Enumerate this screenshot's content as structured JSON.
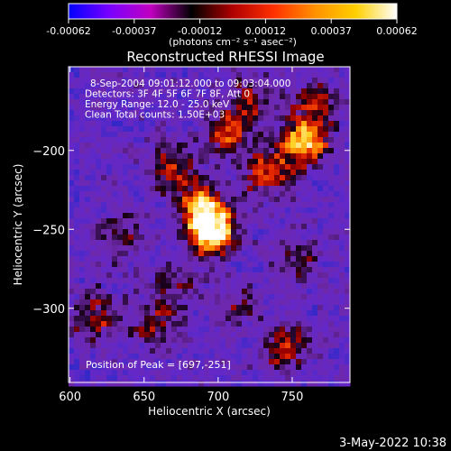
{
  "colorbar": {
    "ticks": [
      "-0.00062",
      "-0.00037",
      "-0.00012",
      "0.00012",
      "0.00037",
      "0.00062"
    ],
    "unit_label": "(photons cm⁻² s⁻¹ asec⁻²)",
    "colors": [
      "#0000ff",
      "#7a00ff",
      "#c000c0",
      "#000000",
      "#b00000",
      "#ff3000",
      "#ff9000",
      "#ffd000",
      "#ffffff"
    ]
  },
  "chart_data": {
    "type": "heatmap",
    "title": "Reconstructed RHESSI Image",
    "xlabel": "Heliocentric X (arcsec)",
    "ylabel": "Heliocentric Y (arcsec)",
    "xlim": [
      599,
      789
    ],
    "ylim": [
      -347,
      -147
    ],
    "xticks": [
      600,
      650,
      700,
      750
    ],
    "yticks": [
      -200,
      -250,
      -300
    ],
    "annotations": [
      "8-Sep-2004 09:01:12.000 to 09:03:04.000",
      "Detectors: 3F 4F 5F 6F 7F 8F, Att 0",
      "Energy Range: 12.0 - 25.0 keV",
      "Clean      Total counts: 1.50E+03"
    ],
    "peak_label": "Position of Peak = [697,-251]",
    "peak": [
      697,
      -251
    ],
    "sources": [
      {
        "x": 697,
        "y": -251,
        "value": 1.0
      },
      {
        "x": 688,
        "y": -237,
        "value": 0.8
      },
      {
        "x": 758,
        "y": -195,
        "value": 0.9
      },
      {
        "x": 733,
        "y": -214,
        "value": 0.6
      },
      {
        "x": 668,
        "y": -212,
        "value": 0.55
      },
      {
        "x": 705,
        "y": -190,
        "value": 0.5
      },
      {
        "x": 723,
        "y": -168,
        "value": 0.45
      },
      {
        "x": 767,
        "y": -172,
        "value": 0.45
      },
      {
        "x": 745,
        "y": -325,
        "value": 0.55
      },
      {
        "x": 617,
        "y": -305,
        "value": 0.5
      },
      {
        "x": 657,
        "y": -310,
        "value": 0.45
      },
      {
        "x": 632,
        "y": -257,
        "value": 0.4
      },
      {
        "x": 673,
        "y": -283,
        "value": 0.35
      },
      {
        "x": 752,
        "y": -268,
        "value": 0.35
      },
      {
        "x": 713,
        "y": -300,
        "value": 0.3
      }
    ]
  },
  "timestamp": "3-May-2022 10:38"
}
